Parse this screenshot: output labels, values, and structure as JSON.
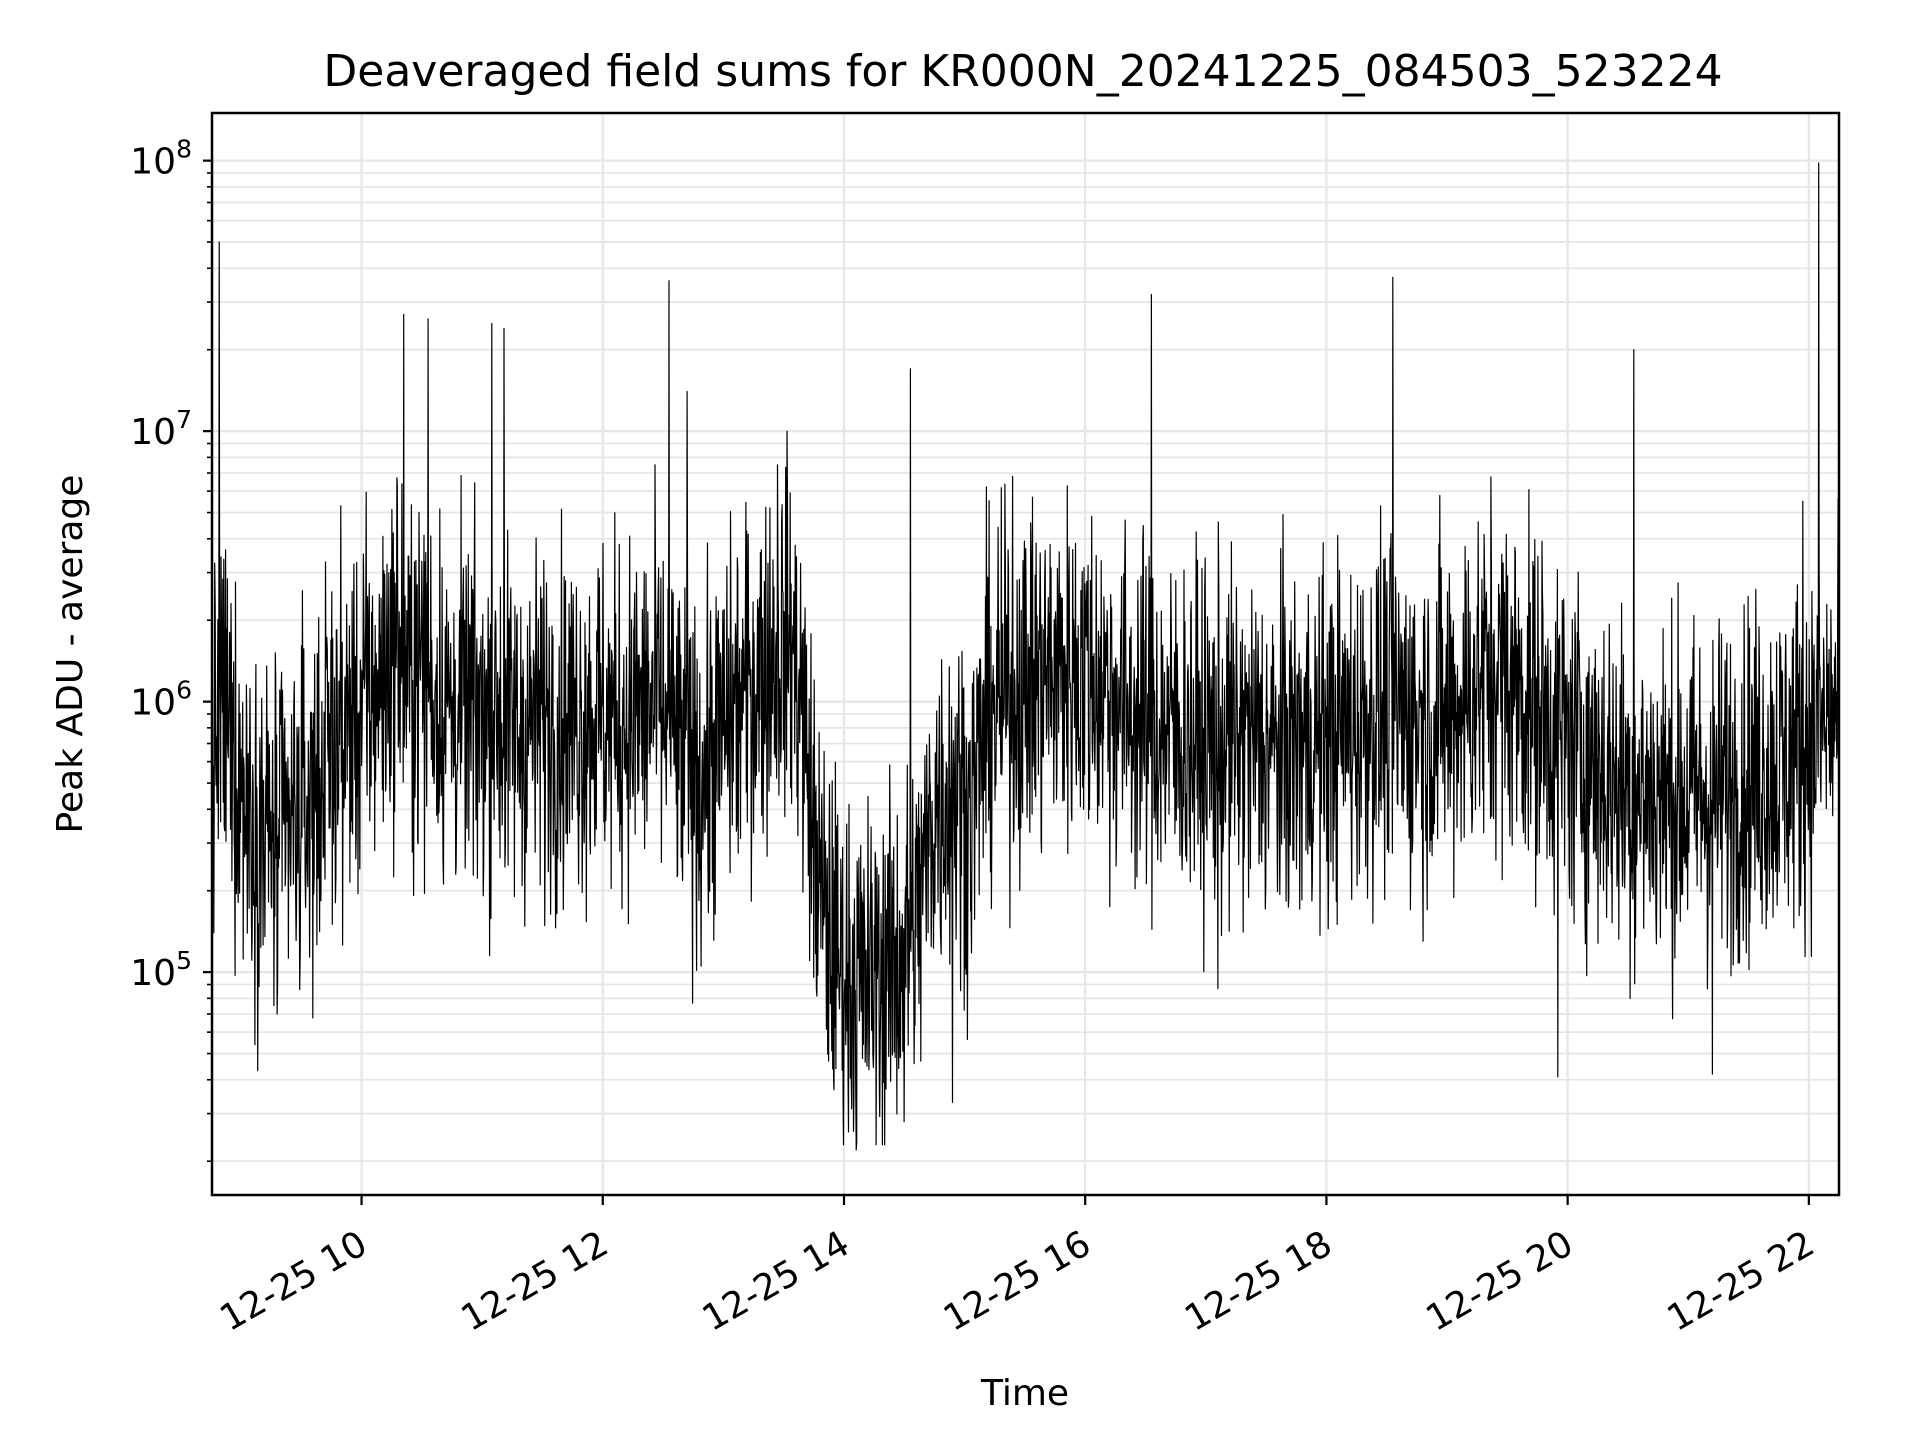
{
  "chart_data": {
    "type": "line",
    "title": "Deaveraged field sums for KR000N_20241225_084503_523224",
    "xlabel": "Time",
    "ylabel": "Peak ADU - average",
    "yscale": "log",
    "grid": true,
    "line_color": "#000000",
    "grid_color": "#e6e6e6",
    "xlim_hours": [
      8.76,
      22.25
    ],
    "ylim": [
      15000,
      150000000
    ],
    "x_ticks": [
      {
        "value": 10,
        "label": "12-25 10"
      },
      {
        "value": 12,
        "label": "12-25 12"
      },
      {
        "value": 14,
        "label": "12-25 14"
      },
      {
        "value": 16,
        "label": "12-25 16"
      },
      {
        "value": 18,
        "label": "12-25 18"
      },
      {
        "value": 20,
        "label": "12-25 20"
      },
      {
        "value": 22,
        "label": "12-25 22"
      }
    ],
    "y_ticks": [
      {
        "value": 100000,
        "base": "10",
        "exp": "5"
      },
      {
        "value": 1000000,
        "base": "10",
        "exp": "6"
      },
      {
        "value": 10000000,
        "base": "10",
        "exp": "7"
      },
      {
        "value": 100000000,
        "base": "10",
        "exp": "8"
      }
    ],
    "series": [
      {
        "name": "Peak ADU - average",
        "x_hours": [
          8.76,
          8.85,
          9.0,
          9.15,
          9.3,
          9.45,
          9.6,
          9.75,
          9.9,
          10.05,
          10.2,
          10.3,
          10.4,
          10.5,
          10.6,
          10.75,
          10.9,
          11.0,
          11.1,
          11.2,
          11.35,
          11.5,
          11.7,
          11.9,
          12.1,
          12.3,
          12.45,
          12.55,
          12.65,
          12.8,
          13.0,
          13.2,
          13.4,
          13.55,
          13.65,
          13.75,
          13.85,
          14.0,
          14.15,
          14.3,
          14.45,
          14.6,
          14.75,
          14.9,
          15.05,
          15.2,
          15.4,
          15.6,
          15.8,
          16.0,
          16.2,
          16.4,
          16.6,
          16.8,
          17.0,
          17.2,
          17.4,
          17.6,
          17.8,
          18.0,
          18.2,
          18.4,
          18.6,
          18.8,
          19.0,
          19.2,
          19.4,
          19.6,
          19.8,
          20.0,
          20.2,
          20.4,
          20.6,
          20.8,
          21.0,
          21.2,
          21.4,
          21.6,
          21.8,
          22.0,
          22.1,
          22.25
        ],
        "baseline": [
          600000,
          1000000,
          500000,
          350000,
          300000,
          350000,
          450000,
          700000,
          800000,
          1000000,
          1300000,
          1700000,
          1200000,
          1400000,
          1100000,
          900000,
          900000,
          900000,
          900000,
          800000,
          800000,
          850000,
          850000,
          900000,
          850000,
          900000,
          1000000,
          800000,
          600000,
          500000,
          800000,
          1100000,
          1500000,
          1800000,
          1000000,
          300000,
          150000,
          100000,
          90000,
          100000,
          110000,
          150000,
          400000,
          500000,
          400000,
          900000,
          1100000,
          1200000,
          1300000,
          1300000,
          1100000,
          900000,
          800000,
          750000,
          700000,
          700000,
          700000,
          650000,
          700000,
          750000,
          800000,
          900000,
          900000,
          850000,
          900000,
          1100000,
          1300000,
          1100000,
          900000,
          700000,
          600000,
          500000,
          450000,
          450000,
          450000,
          450000,
          500000,
          550000,
          600000,
          700000,
          800000,
          900000
        ],
        "noise_decades": 0.45,
        "spikes": [
          {
            "x_hour": 8.82,
            "value": 50000000
          },
          {
            "x_hour": 10.35,
            "value": 27000000
          },
          {
            "x_hour": 10.55,
            "value": 26000000
          },
          {
            "x_hour": 11.08,
            "value": 25000000
          },
          {
            "x_hour": 11.18,
            "value": 24000000
          },
          {
            "x_hour": 12.55,
            "value": 36000000
          },
          {
            "x_hour": 12.7,
            "value": 14000000
          },
          {
            "x_hour": 13.45,
            "value": 7500000
          },
          {
            "x_hour": 14.55,
            "value": 17000000
          },
          {
            "x_hour": 15.4,
            "value": 6800000
          },
          {
            "x_hour": 16.55,
            "value": 32000000
          },
          {
            "x_hour": 18.55,
            "value": 37000000
          },
          {
            "x_hour": 20.55,
            "value": 20000000
          },
          {
            "x_hour": 21.95,
            "value": 5500000
          },
          {
            "x_hour": 22.08,
            "value": 98000000
          }
        ],
        "dips": [
          {
            "x_hour": 14.1,
            "value": 22000
          },
          {
            "x_hour": 14.5,
            "value": 28000
          },
          {
            "x_hour": 14.9,
            "value": 33000
          },
          {
            "x_hour": 19.92,
            "value": 41000
          },
          {
            "x_hour": 21.2,
            "value": 42000
          },
          {
            "x_hour": 9.3,
            "value": 70000
          },
          {
            "x_hour": 17.1,
            "value": 87000
          }
        ]
      }
    ]
  }
}
